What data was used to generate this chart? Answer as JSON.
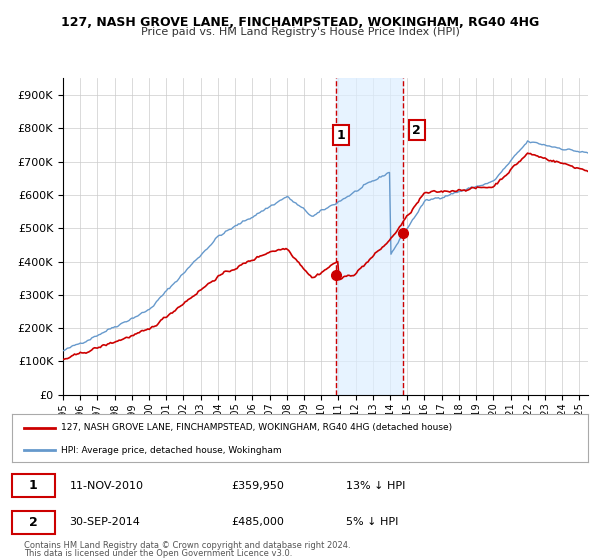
{
  "title": "127, NASH GROVE LANE, FINCHAMPSTEAD, WOKINGHAM, RG40 4HG",
  "subtitle": "Price paid vs. HM Land Registry's House Price Index (HPI)",
  "legend_line1": "127, NASH GROVE LANE, FINCHAMPSTEAD, WOKINGHAM, RG40 4HG (detached house)",
  "legend_line2": "HPI: Average price, detached house, Wokingham",
  "annotation1_date": "11-NOV-2010",
  "annotation1_price": "£359,950",
  "annotation1_hpi": "13% ↓ HPI",
  "annotation2_date": "30-SEP-2014",
  "annotation2_price": "£485,000",
  "annotation2_hpi": "5% ↓ HPI",
  "footer1": "Contains HM Land Registry data © Crown copyright and database right 2024.",
  "footer2": "This data is licensed under the Open Government Licence v3.0.",
  "red_color": "#cc0000",
  "blue_color": "#6699cc",
  "annotation_vline_color": "#cc0000",
  "shade_color": "#ddeeff",
  "background_color": "#ffffff",
  "grid_color": "#cccccc",
  "ylim": [
    0,
    950000
  ],
  "yticks": [
    0,
    100000,
    200000,
    300000,
    400000,
    500000,
    600000,
    700000,
    800000,
    900000
  ],
  "xlim_start": 1995.0,
  "xlim_end": 2025.5,
  "point1_x": 2010.86,
  "point1_y": 359950,
  "point2_x": 2014.75,
  "point2_y": 485000
}
